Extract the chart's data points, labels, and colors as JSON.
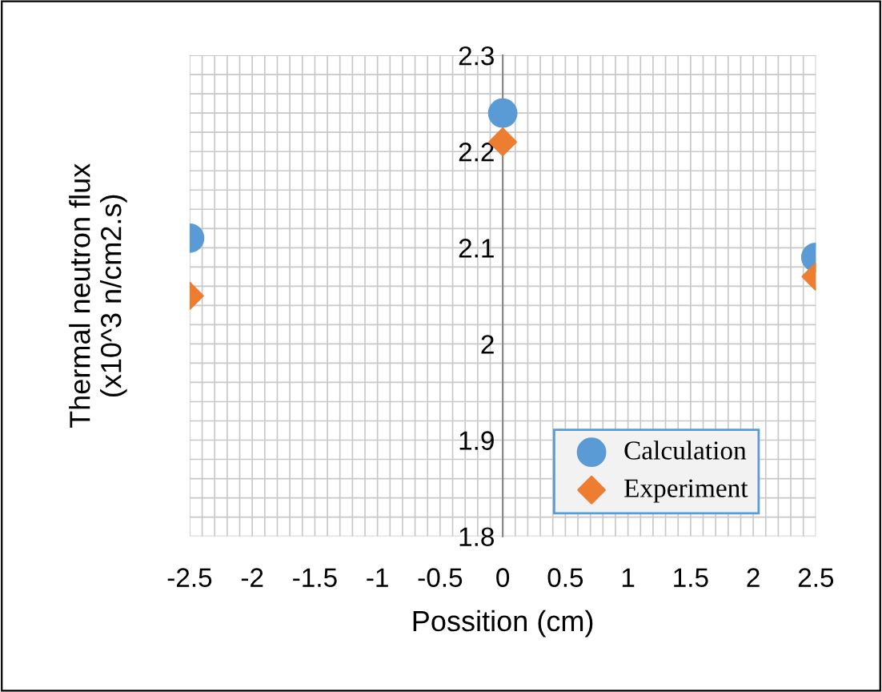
{
  "chart_data": {
    "type": "scatter",
    "xlabel": "Possition (cm)",
    "ylabel": "Thermal neutron flux\n(x10^3 n/cm2.s)",
    "x": [
      -2.5,
      0,
      2.5
    ],
    "series": [
      {
        "name": "Calculation",
        "color": "#5b9bd5",
        "marker": "circle",
        "values": [
          2.11,
          2.24,
          2.09
        ]
      },
      {
        "name": "Experiment",
        "color": "#ed7d31",
        "marker": "diamond",
        "values": [
          2.05,
          2.21,
          2.07
        ]
      }
    ],
    "xlim": [
      -2.5,
      2.5
    ],
    "ylim": [
      1.8,
      2.3
    ],
    "xticks": [
      -2.5,
      -2,
      -1.5,
      -1,
      -0.5,
      0,
      0.5,
      1,
      1.5,
      2,
      2.5
    ],
    "yticks": [
      1.8,
      1.9,
      2,
      2.1,
      2.2,
      2.3
    ],
    "grid": true,
    "legend": "bottom right"
  }
}
